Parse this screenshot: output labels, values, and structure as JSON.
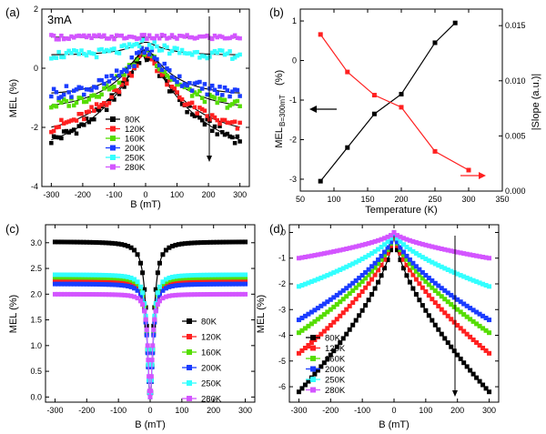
{
  "colors": {
    "s80K": "#000000",
    "s120K": "#ff2020",
    "s160K": "#55dd00",
    "s200K": "#1a3cff",
    "s250K": "#33ffff",
    "s280K": "#d355ff",
    "mel_line": "#000000",
    "slope_line": "#ff2020"
  },
  "temps": [
    "80K",
    "120K",
    "160K",
    "200K",
    "250K",
    "280K"
  ],
  "chart_data": [
    {
      "panel": "(a)",
      "type": "line",
      "annotation": "3mA",
      "xlabel": "B (mT)",
      "ylabel": "MEL (%)",
      "xlim": [
        -330,
        330
      ],
      "ylim": [
        -4,
        2
      ],
      "xticks": [
        -300,
        -200,
        -100,
        0,
        100,
        200,
        300
      ],
      "yticks": [
        -4,
        -2,
        0,
        2
      ],
      "legend_position": "bottom-center",
      "arrow": "down",
      "series": [
        {
          "name": "80K",
          "base": -3.0,
          "peak": 0.8,
          "width": 160,
          "noise": 0.22
        },
        {
          "name": "120K",
          "base": -2.3,
          "peak": 0.8,
          "width": 130,
          "noise": 0.22
        },
        {
          "name": "160K",
          "base": -1.4,
          "peak": 0.85,
          "width": 110,
          "noise": 0.2
        },
        {
          "name": "200K",
          "base": -0.9,
          "peak": 0.85,
          "width": 90,
          "noise": 0.25
        },
        {
          "name": "250K",
          "base": 0.45,
          "peak": 0.95,
          "width": 70,
          "noise": 0.18
        },
        {
          "name": "280K",
          "base": 1.05,
          "peak": 1.05,
          "width": 55,
          "noise": 0.1
        }
      ]
    },
    {
      "panel": "(b)",
      "type": "line",
      "xlabel": "Temperature (K)",
      "ylabel": "MEL B=300mT (%)",
      "ylabel_main": "MEL",
      "ylabel_sub": "B=300mT",
      "ylabel_unit": "(%)",
      "y2label": "|Slope (a.u.)|",
      "xlim": [
        50,
        350
      ],
      "ylim": [
        -3.3,
        1.3
      ],
      "y2lim": [
        0,
        0.0165
      ],
      "xticks": [
        50,
        100,
        150,
        200,
        250,
        300,
        350
      ],
      "yticks": [
        -3,
        -2,
        -1,
        0,
        1
      ],
      "y2ticks": [
        0.0,
        0.005,
        0.01,
        0.015
      ],
      "series": [
        {
          "name": "MEL",
          "axis": "left",
          "x": [
            80,
            120,
            160,
            200,
            250,
            280
          ],
          "values": [
            -3.05,
            -2.2,
            -1.35,
            -0.85,
            0.45,
            0.95
          ]
        },
        {
          "name": "Slope",
          "axis": "right",
          "x": [
            80,
            120,
            160,
            200,
            250,
            300
          ],
          "values": [
            0.0142,
            0.0108,
            0.0087,
            0.0076,
            0.0036,
            0.0019
          ]
        }
      ]
    },
    {
      "panel": "(c)",
      "type": "line",
      "xlabel": "B (mT)",
      "ylabel": "MEL (%)",
      "xlim": [
        -330,
        330
      ],
      "ylim": [
        -0.1,
        3.35
      ],
      "xticks": [
        -300,
        -200,
        -100,
        0,
        100,
        200,
        300
      ],
      "yticks": [
        0.0,
        0.5,
        1.0,
        1.5,
        2.0,
        2.5,
        3.0
      ],
      "legend_position": "right",
      "series": [
        {
          "name": "80K",
          "sat": 3.02,
          "b0": 6
        },
        {
          "name": "120K",
          "sat": 2.25,
          "b0": 5
        },
        {
          "name": "160K",
          "sat": 2.33,
          "b0": 5
        },
        {
          "name": "200K",
          "sat": 2.2,
          "b0": 5
        },
        {
          "name": "250K",
          "sat": 2.38,
          "b0": 5
        },
        {
          "name": "280K",
          "sat": 2.0,
          "b0": 4
        }
      ]
    },
    {
      "panel": "(d)",
      "type": "line",
      "xlabel": "B (mT)",
      "ylabel": "MEL (%)",
      "xlim": [
        -330,
        330
      ],
      "ylim": [
        -6.6,
        0.3
      ],
      "xticks": [
        -300,
        -200,
        -100,
        0,
        100,
        200,
        300
      ],
      "yticks": [
        -6,
        -5,
        -4,
        -3,
        -2,
        -1,
        0
      ],
      "legend_position": "bottom-left",
      "arrow": "down",
      "series": [
        {
          "name": "80K",
          "end": -6.2
        },
        {
          "name": "120K",
          "end": -4.7
        },
        {
          "name": "160K",
          "end": -3.9
        },
        {
          "name": "200K",
          "end": -3.4
        },
        {
          "name": "250K",
          "end": -2.1
        },
        {
          "name": "280K",
          "end": -1.0
        }
      ]
    }
  ]
}
